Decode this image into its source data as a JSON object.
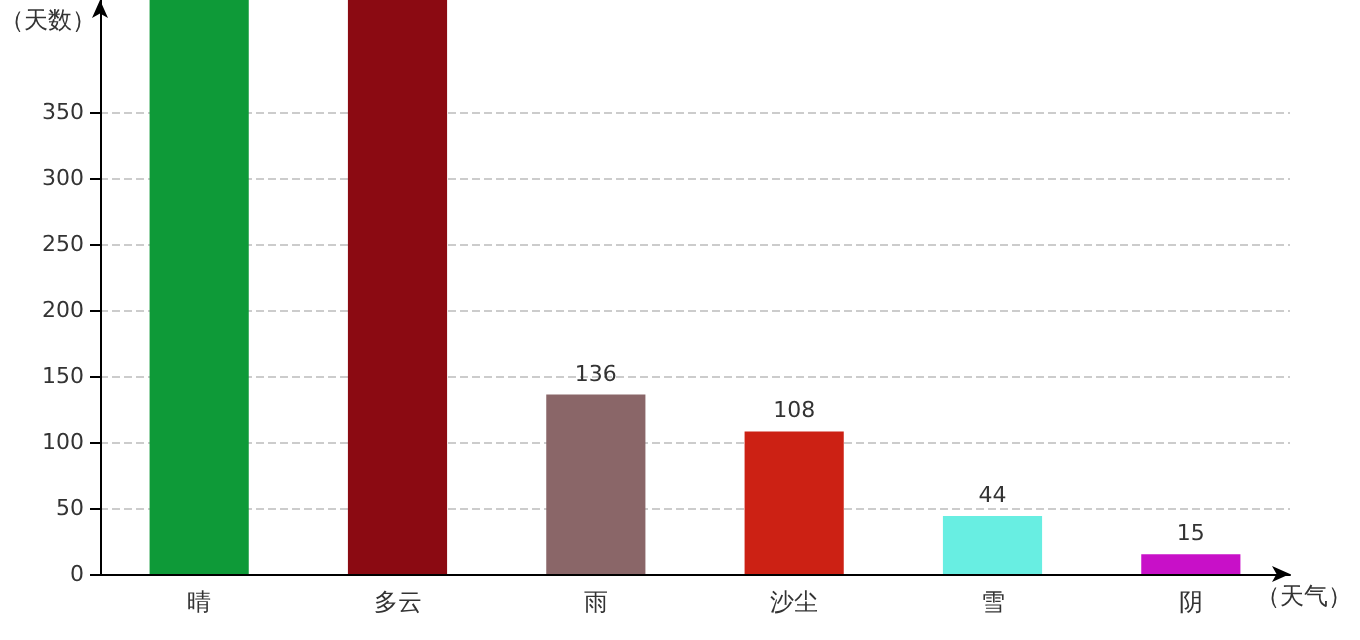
{
  "chart_data": {
    "type": "bar",
    "xlabel": "（天气）",
    "ylabel": "（天数）",
    "categories": [
      "晴",
      "多云",
      "雨",
      "沙尘",
      "雪",
      "阴"
    ],
    "values": [
      435,
      435,
      136,
      108,
      44,
      15
    ],
    "value_labels": [
      null,
      null,
      "136",
      "108",
      "44",
      "15"
    ],
    "colors": [
      "#0e9a38",
      "#8b0a12",
      "#8a6668",
      "#cc2114",
      "#68eee2",
      "#c810c8"
    ],
    "ylim": [
      0,
      435
    ],
    "yticks": [
      0,
      50,
      100,
      150,
      200,
      250,
      300,
      350
    ],
    "grid": "y"
  }
}
